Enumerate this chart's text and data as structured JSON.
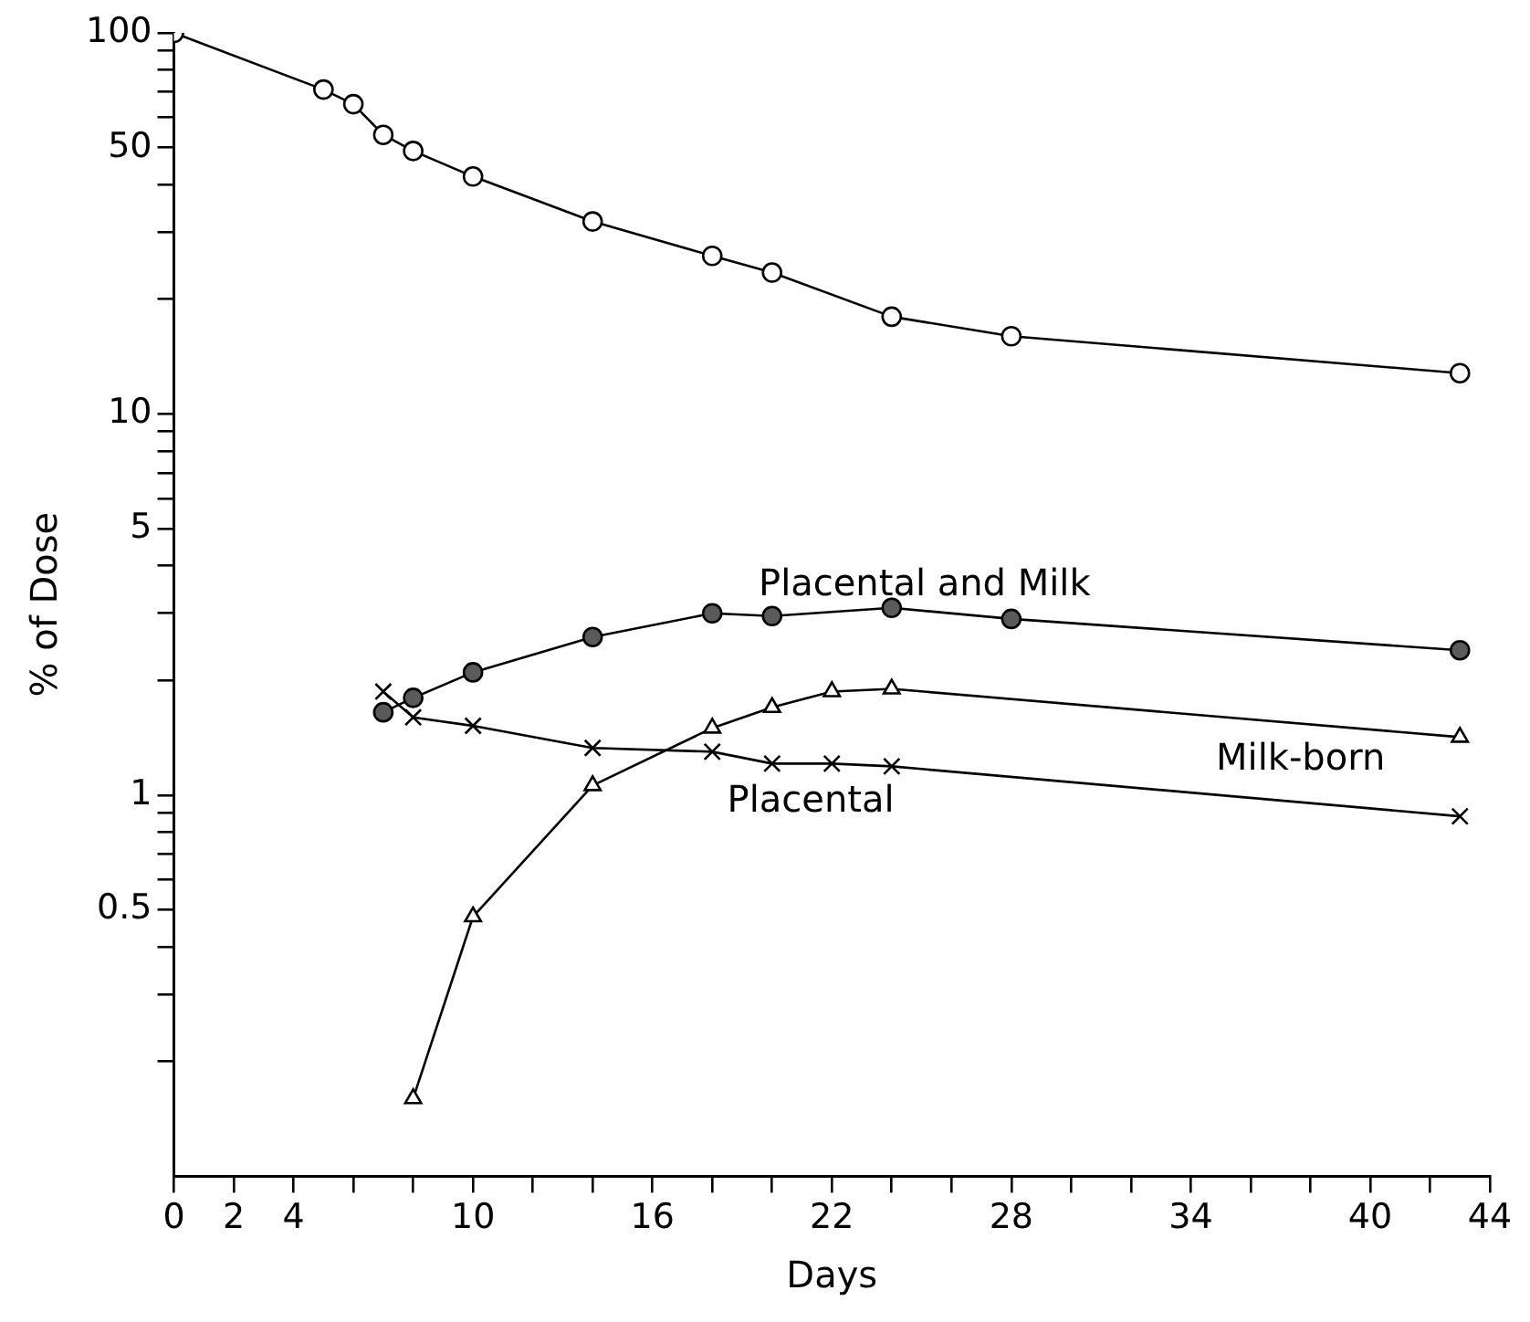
{
  "chart_data": {
    "type": "line",
    "xlabel": "Days",
    "ylabel": "% of Dose",
    "log": "y",
    "grid": false,
    "legend": false,
    "line_style": "solid",
    "xlim": [
      0,
      44
    ],
    "xticks": [
      0,
      2,
      4,
      {
        "value": 6,
        "label": null
      },
      {
        "value": 8,
        "label": null
      },
      10,
      {
        "value": 12,
        "label": null
      },
      {
        "value": 14,
        "label": null
      },
      16,
      {
        "value": 18,
        "label": null
      },
      {
        "value": 20,
        "label": null
      },
      22,
      {
        "value": 24,
        "label": null
      },
      {
        "value": 26,
        "label": null
      },
      28,
      {
        "value": 30,
        "label": null
      },
      {
        "value": 32,
        "label": null
      },
      34,
      {
        "value": 36,
        "label": null
      },
      {
        "value": 38,
        "label": null
      },
      40,
      {
        "value": 42,
        "label": null
      },
      44
    ],
    "ylim": [
      0.1,
      100
    ],
    "yticks": [
      {
        "value": 0.2,
        "label": null
      },
      {
        "value": 0.3,
        "label": null
      },
      {
        "value": 0.4,
        "label": null
      },
      0.5,
      {
        "value": 0.6,
        "label": null
      },
      {
        "value": 0.7,
        "label": null
      },
      {
        "value": 0.8,
        "label": null
      },
      {
        "value": 0.9,
        "label": null
      },
      1,
      {
        "value": 2,
        "label": null
      },
      {
        "value": 3,
        "label": null
      },
      {
        "value": 4,
        "label": null
      },
      5,
      {
        "value": 6,
        "label": null
      },
      {
        "value": 7,
        "label": null
      },
      {
        "value": 8,
        "label": null
      },
      {
        "value": 9,
        "label": null
      },
      10,
      {
        "value": 20,
        "label": null
      },
      {
        "value": 30,
        "label": null
      },
      {
        "value": 40,
        "label": null
      },
      50,
      {
        "value": 60,
        "label": null
      },
      {
        "value": 70,
        "label": null
      },
      {
        "value": 80,
        "label": null
      },
      {
        "value": 90,
        "label": null
      },
      100
    ],
    "series": [
      {
        "marker": "circle",
        "color": "#ffffff",
        "x": [
          0,
          5,
          6,
          7,
          8,
          10,
          14,
          18,
          20,
          24,
          28,
          43
        ],
        "values": [
          100,
          71,
          65,
          54,
          49,
          42,
          32,
          26,
          23.5,
          18,
          16,
          12.8
        ]
      },
      {
        "name": "Placental and Milk",
        "marker": "circle",
        "color": "#5a5a5a",
        "x": [
          7,
          8,
          10,
          14,
          18,
          20,
          24,
          28,
          43
        ],
        "values": [
          1.65,
          1.8,
          2.1,
          2.6,
          3,
          2.95,
          3.1,
          2.9,
          2.4
        ]
      },
      {
        "name": "Milk-born",
        "marker": "triangle",
        "color": "#ffffff",
        "x": [
          8,
          10,
          14,
          18,
          20,
          22,
          24,
          43
        ],
        "values": [
          0.16,
          0.48,
          1.06,
          1.5,
          1.7,
          1.87,
          1.9,
          1.42
        ]
      },
      {
        "name": "Placental",
        "marker": "cross",
        "color": "#000000",
        "x": [
          7,
          8,
          10,
          14,
          18,
          20,
          22,
          24,
          43
        ],
        "values": [
          1.87,
          1.6,
          1.52,
          1.33,
          1.3,
          1.21,
          1.21,
          1.19,
          0.88
        ]
      }
    ]
  }
}
